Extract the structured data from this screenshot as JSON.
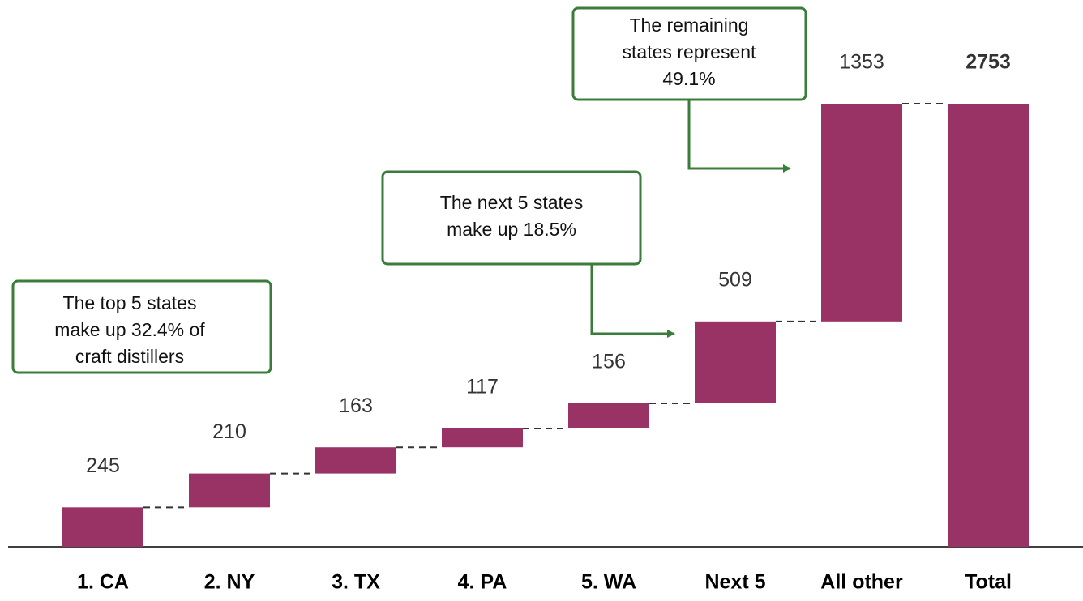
{
  "chart_data": {
    "type": "waterfall",
    "categories": [
      "1. CA",
      "2. NY",
      "3. TX",
      "4. PA",
      "5. WA",
      "Next 5",
      "All other",
      "Total"
    ],
    "values": [
      245,
      210,
      163,
      117,
      156,
      509,
      1353,
      2753
    ],
    "color": "#993366",
    "annotations": [
      {
        "lines": [
          "The top 5 states",
          "make up 32.4% of",
          "craft distillers"
        ]
      },
      {
        "lines": [
          "The next 5 states",
          "make up 18.5%"
        ]
      },
      {
        "lines": [
          "The remaining",
          "states represent",
          "49.1%"
        ]
      }
    ]
  }
}
